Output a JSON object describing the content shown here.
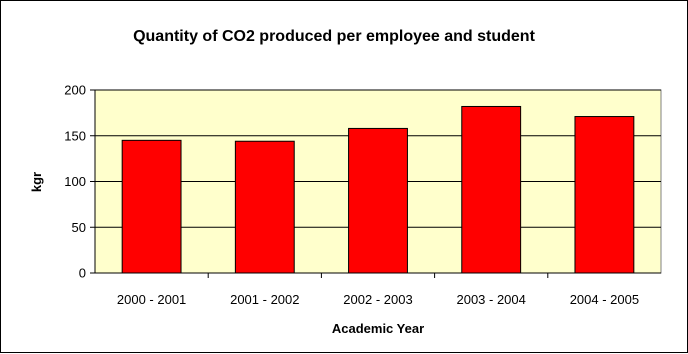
{
  "chart_data": {
    "type": "bar",
    "title": "Quantity of CO2 produced per employee and student",
    "xlabel": "Academic Year",
    "ylabel": "kgr",
    "categories": [
      "2000 - 2001",
      "2001 - 2002",
      "2002 - 2003",
      "2003 - 2004",
      "2004 - 2005"
    ],
    "values": [
      145,
      144,
      158,
      182,
      171
    ],
    "ylim": [
      0,
      200
    ],
    "yticks": [
      0,
      50,
      100,
      150,
      200
    ],
    "grid": true,
    "legend": "none",
    "colors": {
      "bar": "#ff0000",
      "plot_background": "#ffffcc",
      "gridline": "#000000"
    }
  }
}
